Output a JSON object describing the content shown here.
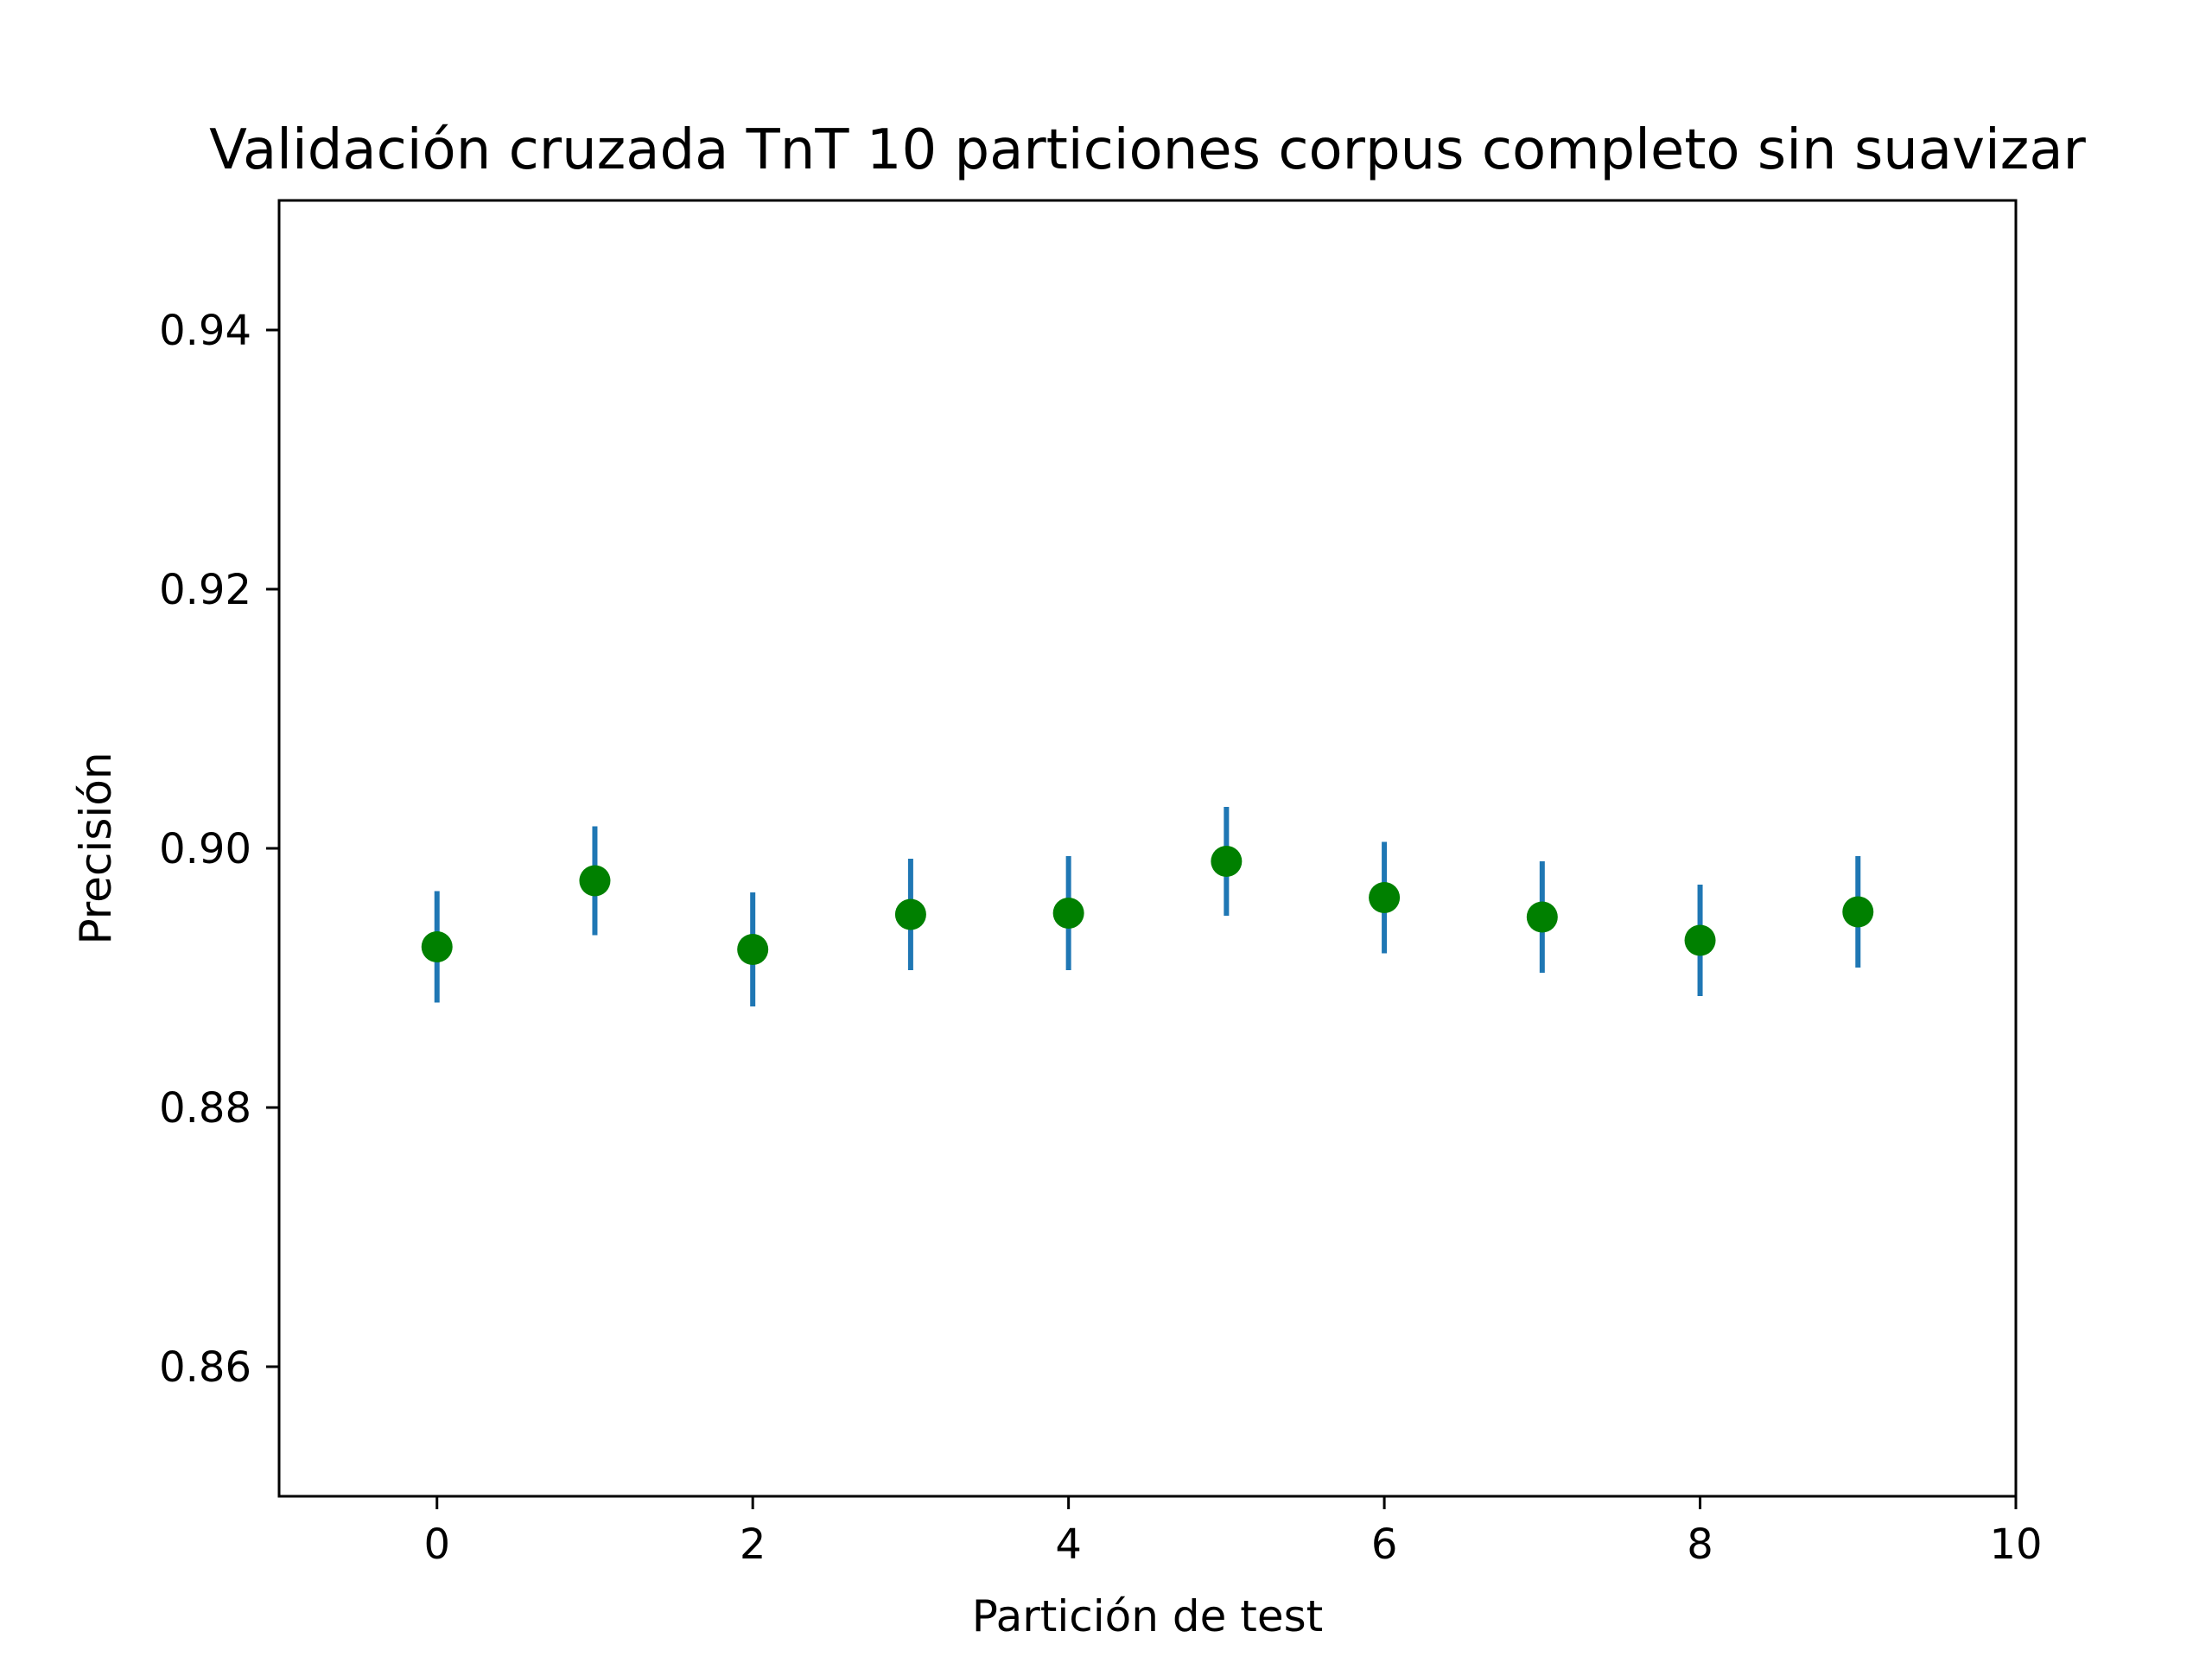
{
  "chart_data": {
    "type": "scatter",
    "title": "Validación cruzada TnT 10 particiones corpus completo sin suavizar",
    "xlabel": "Partición de test",
    "ylabel": "Precisión",
    "xlim": [
      -1,
      10
    ],
    "ylim": [
      0.85,
      0.95
    ],
    "xticks": [
      0,
      2,
      4,
      6,
      8,
      10
    ],
    "xtick_labels": [
      "0",
      "2",
      "4",
      "6",
      "8",
      "10"
    ],
    "yticks": [
      0.86,
      0.88,
      0.9,
      0.92,
      0.94
    ],
    "ytick_labels": [
      "0.86",
      "0.88",
      "0.90",
      "0.92",
      "0.94"
    ],
    "grid": false,
    "marker_color": "#008000",
    "errorbar_color": "#1f77b4",
    "points": [
      {
        "x": 0,
        "y": 0.8924,
        "err": 0.0043
      },
      {
        "x": 1,
        "y": 0.8975,
        "err": 0.0042
      },
      {
        "x": 2,
        "y": 0.8922,
        "err": 0.0044
      },
      {
        "x": 3,
        "y": 0.8949,
        "err": 0.0043
      },
      {
        "x": 4,
        "y": 0.895,
        "err": 0.0044
      },
      {
        "x": 5,
        "y": 0.899,
        "err": 0.0042
      },
      {
        "x": 6,
        "y": 0.8962,
        "err": 0.0043
      },
      {
        "x": 7,
        "y": 0.8947,
        "err": 0.0043
      },
      {
        "x": 8,
        "y": 0.8929,
        "err": 0.0043
      },
      {
        "x": 9,
        "y": 0.8951,
        "err": 0.0043
      }
    ]
  }
}
